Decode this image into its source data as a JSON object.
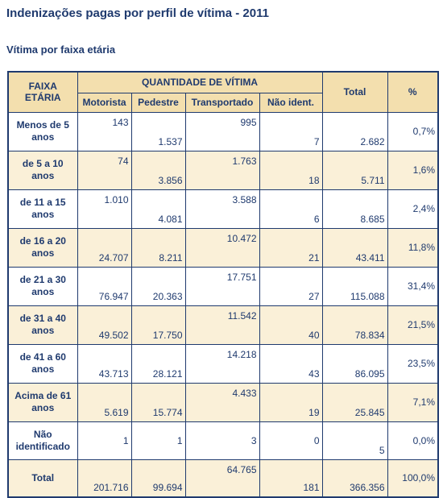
{
  "title": "Indenizações pagas por perfil de vítima - 2011",
  "subtitle": "Vítima por faixa etária",
  "table": {
    "header": {
      "faixa_line1": "FAIXA",
      "faixa_line2": "ETÁRIA",
      "group": "QUANTIDADE DE VÍTIMA",
      "motorista": "Motorista",
      "pedestre": "Pedestre",
      "transportado": "Transportado",
      "nao_ident": "Não ident.",
      "total": "Total",
      "percent": "%"
    },
    "rows": [
      {
        "line1": "Menos de 5",
        "line2": "anos",
        "motorista": "143",
        "pedestre": "1.537",
        "transportado": "995",
        "nao_ident": "7",
        "total": "2.682",
        "percent": "0,7%"
      },
      {
        "line1": "de 5 a 10",
        "line2": "anos",
        "motorista": "74",
        "pedestre": "3.856",
        "transportado": "1.763",
        "nao_ident": "18",
        "total": "5.711",
        "percent": "1,6%"
      },
      {
        "line1": "de 11 a 15",
        "line2": "anos",
        "motorista": "1.010",
        "pedestre": "4.081",
        "transportado": "3.588",
        "nao_ident": "6",
        "total": "8.685",
        "percent": "2,4%"
      },
      {
        "line1": "de 16 a 20",
        "line2": "anos",
        "motorista": "24.707",
        "pedestre": "8.211",
        "transportado": "10.472",
        "nao_ident": "21",
        "total": "43.411",
        "percent": "11,8%"
      },
      {
        "line1": "de 21 a 30",
        "line2": "anos",
        "motorista": "76.947",
        "pedestre": "20.363",
        "transportado": "17.751",
        "nao_ident": "27",
        "total": "115.088",
        "percent": "31,4%"
      },
      {
        "line1": "de 31 a 40",
        "line2": "anos",
        "motorista": "49.502",
        "pedestre": "17.750",
        "transportado": "11.542",
        "nao_ident": "40",
        "total": "78.834",
        "percent": "21,5%"
      },
      {
        "line1": "de 41 a 60",
        "line2": "anos",
        "motorista": "43.713",
        "pedestre": "28.121",
        "transportado": "14.218",
        "nao_ident": "43",
        "total": "86.095",
        "percent": "23,5%"
      },
      {
        "line1": "Acima de 61",
        "line2": "anos",
        "motorista": "5.619",
        "pedestre": "15.774",
        "transportado": "4.433",
        "nao_ident": "19",
        "total": "25.845",
        "percent": "7,1%"
      },
      {
        "line1": "Não",
        "line2": "identificado",
        "motorista": "1",
        "pedestre": "1",
        "transportado": "3",
        "nao_ident": "0",
        "total": "5",
        "percent": "0,0%"
      }
    ],
    "total_row": {
      "label": "Total",
      "motorista": "201.716",
      "pedestre": "99.694",
      "transportado": "64.765",
      "nao_ident": "181",
      "total": "366.356",
      "percent": "100,0%"
    }
  },
  "colors": {
    "text": "#1f3a6e",
    "header_bg": "#f3dfae",
    "alt_row_bg": "#faf0d8"
  }
}
